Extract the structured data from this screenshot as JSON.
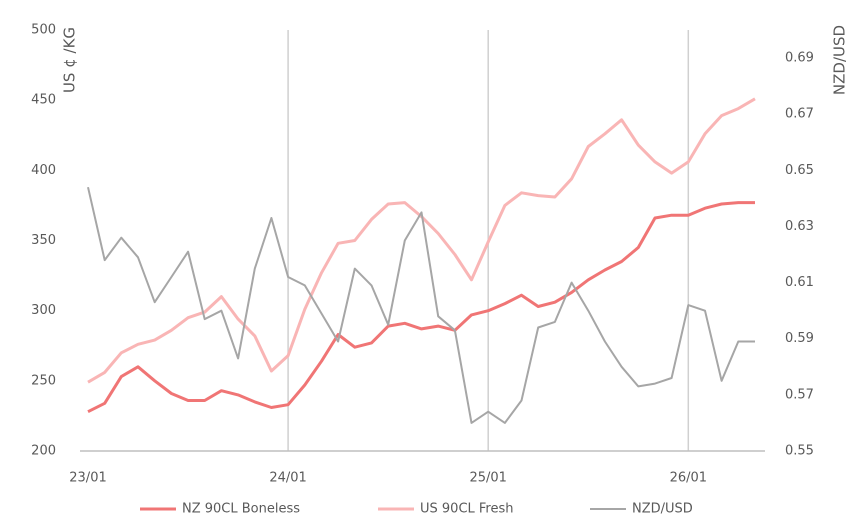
{
  "chart_data": {
    "type": "line",
    "categories": [
      "23/01",
      null,
      null,
      null,
      null,
      null,
      null,
      null,
      null,
      null,
      null,
      null,
      "24/01",
      null,
      null,
      null,
      null,
      null,
      null,
      null,
      null,
      null,
      null,
      null,
      "25/01",
      null,
      null,
      null,
      null,
      null,
      null,
      null,
      null,
      null,
      null,
      null,
      "26/01",
      null,
      null,
      null,
      null
    ],
    "y_label": "US ¢ /KG",
    "y2_label": "NZD/USD",
    "ylim": [
      200,
      500
    ],
    "yticks": [
      200,
      250,
      300,
      350,
      400,
      450,
      500
    ],
    "y2lim": [
      0.55,
      0.7
    ],
    "y2ticks": [
      0.55,
      0.57,
      0.59,
      0.61,
      0.63,
      0.65,
      0.67,
      0.69
    ],
    "grid": true,
    "legend": "bottom",
    "series": [
      {
        "name": "NZ 90CL Boneless",
        "color": "#f07575",
        "values": [
          228,
          234,
          253,
          260,
          250,
          241,
          236,
          236,
          243,
          240,
          235,
          231,
          233,
          247,
          264,
          283,
          274,
          277,
          289,
          291,
          287,
          289,
          286,
          297,
          300,
          305,
          311,
          303,
          306,
          313,
          322,
          329,
          335,
          345,
          366,
          368,
          368,
          373,
          376,
          377,
          377
        ]
      },
      {
        "name": "US 90CL Fresh",
        "color": "#f9b5b5",
        "values": [
          249,
          256,
          270,
          276,
          279,
          286,
          295,
          299,
          310,
          294,
          282,
          257,
          268,
          301,
          327,
          348,
          350,
          365,
          376,
          377,
          367,
          355,
          340,
          322,
          349,
          375,
          384,
          382,
          381,
          394,
          417,
          426,
          436,
          418,
          406,
          398,
          406,
          426,
          439,
          444,
          451
        ]
      },
      {
        "name": "NZD/USD",
        "color": "#a6a6a6",
        "axis": "y2",
        "values": [
          0.644,
          0.618,
          0.626,
          0.619,
          0.603,
          0.612,
          0.621,
          0.597,
          0.6,
          0.583,
          0.615,
          0.633,
          0.612,
          0.609,
          0.599,
          0.589,
          0.615,
          0.609,
          0.595,
          0.625,
          0.635,
          0.598,
          0.593,
          0.56,
          0.564,
          0.56,
          0.568,
          0.594,
          0.596,
          0.61,
          0.6,
          0.589,
          0.58,
          0.573,
          0.574,
          0.576,
          0.602,
          0.6,
          0.575,
          0.589,
          0.589
        ]
      }
    ]
  }
}
